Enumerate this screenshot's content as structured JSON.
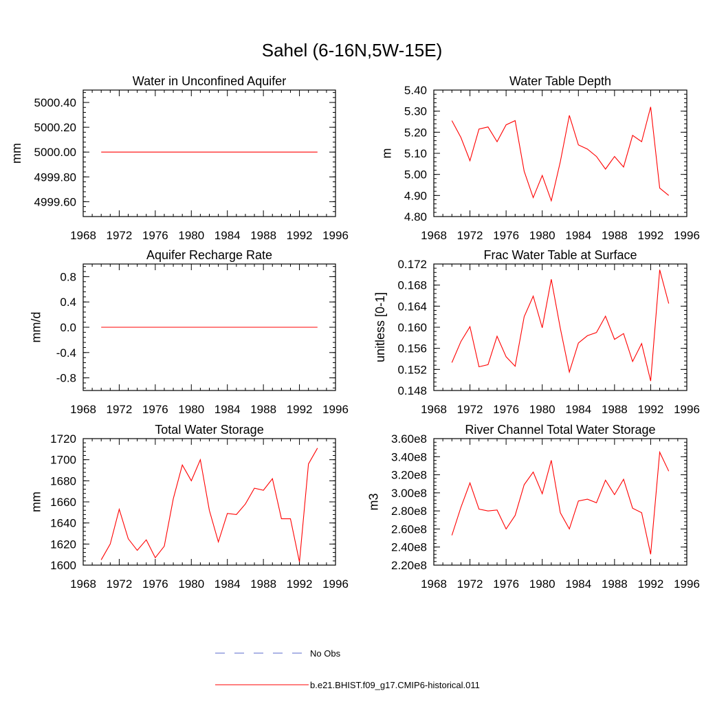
{
  "figure": {
    "title": "Sahel (6-16N,5W-15E)"
  },
  "colors": {
    "model_line": "#ff0000",
    "obs_line": "#5a6acb",
    "axis": "#000000"
  },
  "legend": [
    {
      "label": "No Obs",
      "style": "dashed",
      "color": "#5a6acb"
    },
    {
      "label": "b.e21.BHIST.f09_g17.CMIP6-historical.011",
      "style": "solid",
      "color": "#ff0000"
    }
  ],
  "chart_data": [
    {
      "type": "line",
      "title": "Water in Unconfined Aquifer",
      "ylabel": "mm",
      "xlim": [
        1968,
        1996
      ],
      "ylim": [
        4999.48,
        5000.5
      ],
      "xticks": [
        1968,
        1972,
        1976,
        1980,
        1984,
        1988,
        1992,
        1996
      ],
      "xtick_labels": [
        "1968",
        "1972",
        "1976",
        "1980",
        "1984",
        "1988",
        "1992",
        "1996"
      ],
      "yticks": [
        4999.6,
        4999.8,
        5000.0,
        5000.2,
        5000.4
      ],
      "ytick_labels": [
        "4999.60",
        "4999.80",
        "5000.00",
        "5000.20",
        "5000.40"
      ],
      "series": [
        {
          "name": "b.e21.BHIST.f09_g17.CMIP6-historical.011",
          "x": [
            1970,
            1971,
            1972,
            1973,
            1974,
            1975,
            1976,
            1977,
            1978,
            1979,
            1980,
            1981,
            1982,
            1983,
            1984,
            1985,
            1986,
            1987,
            1988,
            1989,
            1990,
            1991,
            1992,
            1993,
            1994
          ],
          "y": [
            5000,
            5000,
            5000,
            5000,
            5000,
            5000,
            5000,
            5000,
            5000,
            5000,
            5000,
            5000,
            5000,
            5000,
            5000,
            5000,
            5000,
            5000,
            5000,
            5000,
            5000,
            5000,
            5000,
            5000,
            5000
          ]
        }
      ]
    },
    {
      "type": "line",
      "title": "Water Table Depth",
      "ylabel": "m",
      "xlim": [
        1968,
        1996
      ],
      "ylim": [
        4.8,
        5.4
      ],
      "xticks": [
        1968,
        1972,
        1976,
        1980,
        1984,
        1988,
        1992,
        1996
      ],
      "xtick_labels": [
        "1968",
        "1972",
        "1976",
        "1980",
        "1984",
        "1988",
        "1992",
        "1996"
      ],
      "yticks": [
        4.8,
        4.9,
        5.0,
        5.1,
        5.2,
        5.3,
        5.4
      ],
      "ytick_labels": [
        "4.80",
        "4.90",
        "5.00",
        "5.10",
        "5.20",
        "5.30",
        "5.40"
      ],
      "series": [
        {
          "name": "b.e21.BHIST.f09_g17.CMIP6-historical.011",
          "x": [
            1970,
            1971,
            1972,
            1973,
            1974,
            1975,
            1976,
            1977,
            1978,
            1979,
            1980,
            1981,
            1982,
            1983,
            1984,
            1985,
            1986,
            1987,
            1988,
            1989,
            1990,
            1991,
            1992,
            1993,
            1994
          ],
          "y": [
            5.255,
            5.175,
            5.065,
            5.215,
            5.225,
            5.155,
            5.235,
            5.255,
            5.015,
            4.89,
            4.995,
            4.875,
            5.06,
            5.28,
            5.14,
            5.12,
            5.085,
            5.025,
            5.085,
            5.035,
            5.185,
            5.155,
            5.32,
            4.935,
            4.9
          ]
        }
      ]
    },
    {
      "type": "line",
      "title": "Aquifer Recharge Rate",
      "ylabel": "mm/d",
      "xlim": [
        1968,
        1996
      ],
      "ylim": [
        -1.0,
        1.0
      ],
      "xticks": [
        1968,
        1972,
        1976,
        1980,
        1984,
        1988,
        1992,
        1996
      ],
      "xtick_labels": [
        "1968",
        "1972",
        "1976",
        "1980",
        "1984",
        "1988",
        "1992",
        "1996"
      ],
      "yticks": [
        -0.8,
        -0.4,
        0.0,
        0.4,
        0.8
      ],
      "ytick_labels": [
        "-0.8",
        "-0.4",
        "0.0",
        "0.4",
        "0.8"
      ],
      "series": [
        {
          "name": "b.e21.BHIST.f09_g17.CMIP6-historical.011",
          "x": [
            1970,
            1971,
            1972,
            1973,
            1974,
            1975,
            1976,
            1977,
            1978,
            1979,
            1980,
            1981,
            1982,
            1983,
            1984,
            1985,
            1986,
            1987,
            1988,
            1989,
            1990,
            1991,
            1992,
            1993,
            1994
          ],
          "y": [
            0,
            0,
            0,
            0,
            0,
            0,
            0,
            0,
            0,
            0,
            0,
            0,
            0,
            0,
            0,
            0,
            0,
            0,
            0,
            0,
            0,
            0,
            0,
            0,
            0
          ]
        }
      ]
    },
    {
      "type": "line",
      "title": "Frac Water Table at Surface",
      "ylabel": "unitless [0-1]",
      "xlim": [
        1968,
        1996
      ],
      "ylim": [
        0.148,
        0.172
      ],
      "xticks": [
        1968,
        1972,
        1976,
        1980,
        1984,
        1988,
        1992,
        1996
      ],
      "xtick_labels": [
        "1968",
        "1972",
        "1976",
        "1980",
        "1984",
        "1988",
        "1992",
        "1996"
      ],
      "yticks": [
        0.148,
        0.152,
        0.156,
        0.16,
        0.164,
        0.168,
        0.172
      ],
      "ytick_labels": [
        "0.148",
        "0.152",
        "0.156",
        "0.160",
        "0.164",
        "0.168",
        "0.172"
      ],
      "series": [
        {
          "name": "b.e21.BHIST.f09_g17.CMIP6-historical.011",
          "x": [
            1970,
            1971,
            1972,
            1973,
            1974,
            1975,
            1976,
            1977,
            1978,
            1979,
            1980,
            1981,
            1982,
            1983,
            1984,
            1985,
            1986,
            1987,
            1988,
            1989,
            1990,
            1991,
            1992,
            1993,
            1994
          ],
          "y": [
            0.1533,
            0.1573,
            0.1601,
            0.1525,
            0.1529,
            0.1583,
            0.1544,
            0.1526,
            0.162,
            0.1659,
            0.1599,
            0.1691,
            0.1598,
            0.1515,
            0.157,
            0.1584,
            0.159,
            0.1621,
            0.1577,
            0.1588,
            0.1535,
            0.1569,
            0.1498,
            0.1709,
            0.1645
          ]
        }
      ]
    },
    {
      "type": "line",
      "title": "Total Water Storage",
      "ylabel": "mm",
      "xlim": [
        1968,
        1996
      ],
      "ylim": [
        1600,
        1720
      ],
      "xticks": [
        1968,
        1972,
        1976,
        1980,
        1984,
        1988,
        1992,
        1996
      ],
      "xtick_labels": [
        "1968",
        "1972",
        "1976",
        "1980",
        "1984",
        "1988",
        "1992",
        "1996"
      ],
      "yticks": [
        1600,
        1620,
        1640,
        1660,
        1680,
        1700,
        1720
      ],
      "ytick_labels": [
        "1600",
        "1620",
        "1640",
        "1660",
        "1680",
        "1700",
        "1720"
      ],
      "series": [
        {
          "name": "b.e21.BHIST.f09_g17.CMIP6-historical.011",
          "x": [
            1970,
            1971,
            1972,
            1973,
            1974,
            1975,
            1976,
            1977,
            1978,
            1979,
            1980,
            1981,
            1982,
            1983,
            1984,
            1985,
            1986,
            1987,
            1988,
            1989,
            1990,
            1991,
            1992,
            1993,
            1994
          ],
          "y": [
            1605,
            1620,
            1653,
            1625,
            1614,
            1624,
            1607,
            1618,
            1663,
            1695,
            1680,
            1700,
            1652,
            1622,
            1649,
            1648,
            1658,
            1673,
            1671,
            1682,
            1644,
            1644,
            1603,
            1696,
            1711
          ]
        }
      ]
    },
    {
      "type": "line",
      "title": "River Channel Total Water Storage",
      "ylabel": "m3",
      "xlim": [
        1968,
        1996
      ],
      "ylim": [
        220000000.0,
        360000000.0
      ],
      "xticks": [
        1968,
        1972,
        1976,
        1980,
        1984,
        1988,
        1992,
        1996
      ],
      "xtick_labels": [
        "1968",
        "1972",
        "1976",
        "1980",
        "1984",
        "1988",
        "1992",
        "1996"
      ],
      "yticks": [
        220000000.0,
        240000000.0,
        260000000.0,
        280000000.0,
        300000000.0,
        320000000.0,
        340000000.0,
        360000000.0
      ],
      "ytick_labels": [
        "2.20e8",
        "2.40e8",
        "2.60e8",
        "2.80e8",
        "3.00e8",
        "3.20e8",
        "3.40e8",
        "3.60e8"
      ],
      "series": [
        {
          "name": "b.e21.BHIST.f09_g17.CMIP6-historical.011",
          "x": [
            1970,
            1971,
            1972,
            1973,
            1974,
            1975,
            1976,
            1977,
            1978,
            1979,
            1980,
            1981,
            1982,
            1983,
            1984,
            1985,
            1986,
            1987,
            1988,
            1989,
            1990,
            1991,
            1992,
            1993,
            1994
          ],
          "y": [
            253000000.0,
            284000000.0,
            311000000.0,
            282000000.0,
            280000000.0,
            281000000.0,
            260000000.0,
            275000000.0,
            309000000.0,
            323000000.0,
            299000000.0,
            336000000.0,
            278000000.0,
            260000000.0,
            291000000.0,
            293000000.0,
            289000000.0,
            314000000.0,
            298000000.0,
            315000000.0,
            283000000.0,
            278000000.0,
            232000000.0,
            345000000.0,
            324000000.0
          ]
        }
      ]
    }
  ]
}
